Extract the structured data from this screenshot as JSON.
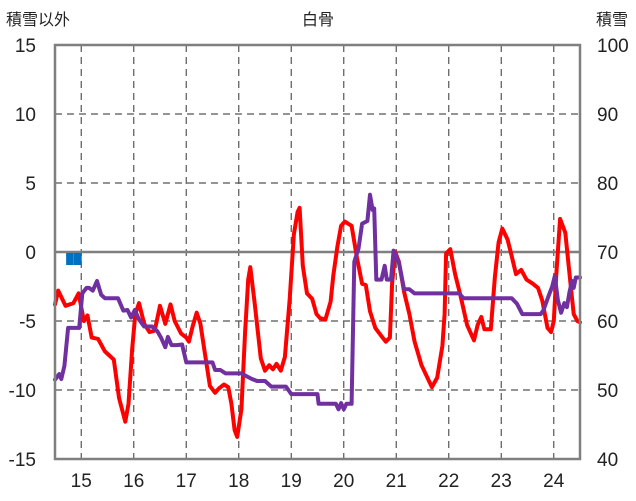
{
  "chart_data": {
    "type": "line",
    "title": "白骨",
    "left_axis_label": "積雪以外",
    "right_axis_label": "積雪",
    "x_ticks": [
      "15",
      "16",
      "17",
      "18",
      "19",
      "20",
      "21",
      "22",
      "23",
      "24"
    ],
    "left_ticks": [
      "15",
      "10",
      "5",
      "0",
      "-5",
      "-10",
      "-15"
    ],
    "right_ticks": [
      "100",
      "90",
      "80",
      "70",
      "60",
      "50",
      "40"
    ],
    "xlim": [
      14.5,
      24.5
    ],
    "ylim_left": [
      -15,
      15
    ],
    "ylim_right": [
      40,
      100
    ],
    "grid": true,
    "colors": {
      "red_series": "#ff0000",
      "purple_series": "#7030a0",
      "marker_series": "#0070c0",
      "zero_line": "#7f7f7f",
      "grid": "#555555",
      "frame": "#7f7f7f"
    },
    "series": [
      {
        "axis": "left",
        "color": "#ff0000",
        "points": [
          [
            14.5,
            -3.8
          ],
          [
            14.56,
            -2.8
          ],
          [
            14.7,
            -3.9
          ],
          [
            14.85,
            -3.7
          ],
          [
            14.95,
            -3.0
          ],
          [
            15.05,
            -5.0
          ],
          [
            15.12,
            -4.6
          ],
          [
            15.2,
            -6.2
          ],
          [
            15.32,
            -6.3
          ],
          [
            15.45,
            -7.2
          ],
          [
            15.62,
            -7.8
          ],
          [
            15.72,
            -10.6
          ],
          [
            15.84,
            -12.3
          ],
          [
            15.9,
            -11.0
          ],
          [
            15.97,
            -7.0
          ],
          [
            16.03,
            -4.5
          ],
          [
            16.1,
            -3.7
          ],
          [
            16.2,
            -5.2
          ],
          [
            16.3,
            -5.8
          ],
          [
            16.4,
            -5.7
          ],
          [
            16.5,
            -3.9
          ],
          [
            16.6,
            -5.2
          ],
          [
            16.7,
            -3.8
          ],
          [
            16.78,
            -5.0
          ],
          [
            16.9,
            -5.9
          ],
          [
            17.0,
            -6.2
          ],
          [
            17.05,
            -6.5
          ],
          [
            17.12,
            -5.4
          ],
          [
            17.2,
            -4.4
          ],
          [
            17.27,
            -5.2
          ],
          [
            17.35,
            -7.2
          ],
          [
            17.45,
            -9.7
          ],
          [
            17.55,
            -10.2
          ],
          [
            17.62,
            -9.9
          ],
          [
            17.72,
            -9.6
          ],
          [
            17.8,
            -9.8
          ],
          [
            17.86,
            -11.0
          ],
          [
            17.92,
            -12.9
          ],
          [
            17.97,
            -13.4
          ],
          [
            18.05,
            -11.4
          ],
          [
            18.12,
            -5.8
          ],
          [
            18.18,
            -2.0
          ],
          [
            18.22,
            -1.1
          ],
          [
            18.3,
            -3.6
          ],
          [
            18.42,
            -7.7
          ],
          [
            18.5,
            -8.6
          ],
          [
            18.58,
            -8.2
          ],
          [
            18.65,
            -8.5
          ],
          [
            18.72,
            -8.1
          ],
          [
            18.8,
            -8.6
          ],
          [
            18.88,
            -7.6
          ],
          [
            18.97,
            -3.4
          ],
          [
            19.05,
            1.3
          ],
          [
            19.12,
            2.9
          ],
          [
            19.16,
            3.2
          ],
          [
            19.22,
            -1.0
          ],
          [
            19.3,
            -3.0
          ],
          [
            19.4,
            -3.4
          ],
          [
            19.48,
            -4.5
          ],
          [
            19.55,
            -4.8
          ],
          [
            19.65,
            -4.9
          ],
          [
            19.75,
            -3.6
          ],
          [
            19.8,
            -1.7
          ],
          [
            19.88,
            0.4
          ],
          [
            19.95,
            1.9
          ],
          [
            20.02,
            2.2
          ],
          [
            20.15,
            1.9
          ],
          [
            20.25,
            -0.4
          ],
          [
            20.35,
            -2.3
          ],
          [
            20.42,
            -2.4
          ],
          [
            20.5,
            -4.3
          ],
          [
            20.6,
            -5.5
          ],
          [
            20.72,
            -6.1
          ],
          [
            20.8,
            -6.5
          ],
          [
            20.88,
            -6.2
          ],
          [
            20.92,
            -2.3
          ],
          [
            20.98,
            0.0
          ],
          [
            21.05,
            -0.7
          ],
          [
            21.15,
            -2.9
          ],
          [
            21.25,
            -4.5
          ],
          [
            21.35,
            -6.5
          ],
          [
            21.48,
            -8.2
          ],
          [
            21.58,
            -9.0
          ],
          [
            21.68,
            -9.8
          ],
          [
            21.78,
            -9.1
          ],
          [
            21.88,
            -6.8
          ],
          [
            21.92,
            -4.5
          ],
          [
            21.95,
            -0.1
          ],
          [
            22.03,
            0.2
          ],
          [
            22.12,
            -1.6
          ],
          [
            22.22,
            -3.1
          ],
          [
            22.35,
            -5.3
          ],
          [
            22.48,
            -6.4
          ],
          [
            22.55,
            -5.3
          ],
          [
            22.62,
            -4.7
          ],
          [
            22.68,
            -5.6
          ],
          [
            22.8,
            -5.6
          ],
          [
            22.88,
            -1.8
          ],
          [
            22.95,
            0.7
          ],
          [
            23.02,
            1.7
          ],
          [
            23.12,
            0.9
          ],
          [
            23.2,
            -0.3
          ],
          [
            23.28,
            -1.6
          ],
          [
            23.38,
            -1.3
          ],
          [
            23.48,
            -2.0
          ],
          [
            23.6,
            -2.3
          ],
          [
            23.7,
            -2.6
          ],
          [
            23.78,
            -3.5
          ],
          [
            23.88,
            -5.5
          ],
          [
            23.95,
            -5.8
          ],
          [
            24.0,
            -5.0
          ],
          [
            24.05,
            -1.5
          ],
          [
            24.12,
            2.4
          ],
          [
            24.22,
            1.4
          ],
          [
            24.32,
            -2.3
          ],
          [
            24.38,
            -4.5
          ],
          [
            24.45,
            -5.0
          ],
          [
            24.5,
            -5.1
          ]
        ]
      },
      {
        "axis": "right",
        "color": "#7030a0",
        "points": [
          [
            14.5,
            51.5
          ],
          [
            14.58,
            52.3
          ],
          [
            14.62,
            51.6
          ],
          [
            14.68,
            53.5
          ],
          [
            14.75,
            59.0
          ],
          [
            14.82,
            59.0
          ],
          [
            14.9,
            59.0
          ],
          [
            14.96,
            59.0
          ],
          [
            15.02,
            64.0
          ],
          [
            15.1,
            64.8
          ],
          [
            15.15,
            64.8
          ],
          [
            15.22,
            64.4
          ],
          [
            15.3,
            65.8
          ],
          [
            15.38,
            63.8
          ],
          [
            15.45,
            63.3
          ],
          [
            15.55,
            63.3
          ],
          [
            15.7,
            63.3
          ],
          [
            15.8,
            61.5
          ],
          [
            15.88,
            61.6
          ],
          [
            15.95,
            60.5
          ],
          [
            16.02,
            61.6
          ],
          [
            16.1,
            60.2
          ],
          [
            16.2,
            59.2
          ],
          [
            16.35,
            59.2
          ],
          [
            16.45,
            58.5
          ],
          [
            16.52,
            57.6
          ],
          [
            16.6,
            56.2
          ],
          [
            16.65,
            57.7
          ],
          [
            16.72,
            56.5
          ],
          [
            16.82,
            56.5
          ],
          [
            16.92,
            56.6
          ],
          [
            17.0,
            54.0
          ],
          [
            17.1,
            54.0
          ],
          [
            17.2,
            54.0
          ],
          [
            17.35,
            54.0
          ],
          [
            17.5,
            54.0
          ],
          [
            17.55,
            52.9
          ],
          [
            17.65,
            52.9
          ],
          [
            17.75,
            52.4
          ],
          [
            17.9,
            52.4
          ],
          [
            18.05,
            52.4
          ],
          [
            18.15,
            52.0
          ],
          [
            18.25,
            51.6
          ],
          [
            18.35,
            51.3
          ],
          [
            18.5,
            51.3
          ],
          [
            18.62,
            50.5
          ],
          [
            18.75,
            50.5
          ],
          [
            18.9,
            50.5
          ],
          [
            19.0,
            49.4
          ],
          [
            19.25,
            49.4
          ],
          [
            19.5,
            49.4
          ],
          [
            19.52,
            48.0
          ],
          [
            19.7,
            48.0
          ],
          [
            19.85,
            48.0
          ],
          [
            19.9,
            47.2
          ],
          [
            19.95,
            48.1
          ],
          [
            20.0,
            47.2
          ],
          [
            20.05,
            48.0
          ],
          [
            20.15,
            48.0
          ],
          [
            20.2,
            68.6
          ],
          [
            20.28,
            70.5
          ],
          [
            20.35,
            74.1
          ],
          [
            20.45,
            74.5
          ],
          [
            20.5,
            78.3
          ],
          [
            20.55,
            76.1
          ],
          [
            20.58,
            76.3
          ],
          [
            20.62,
            66.0
          ],
          [
            20.72,
            66.0
          ],
          [
            20.78,
            68.0
          ],
          [
            20.82,
            66.0
          ],
          [
            20.9,
            66.0
          ],
          [
            20.95,
            70.2
          ],
          [
            21.05,
            68.5
          ],
          [
            21.15,
            64.6
          ],
          [
            21.25,
            64.6
          ],
          [
            21.35,
            64.0
          ],
          [
            21.6,
            64.0
          ],
          [
            21.9,
            64.0
          ],
          [
            22.2,
            64.0
          ],
          [
            22.28,
            63.3
          ],
          [
            22.6,
            63.3
          ],
          [
            22.9,
            63.3
          ],
          [
            23.05,
            63.3
          ],
          [
            23.2,
            63.3
          ],
          [
            23.3,
            62.5
          ],
          [
            23.4,
            61.0
          ],
          [
            23.6,
            61.0
          ],
          [
            23.75,
            61.0
          ],
          [
            23.8,
            61.5
          ],
          [
            23.9,
            63.6
          ],
          [
            23.97,
            65.0
          ],
          [
            24.02,
            66.5
          ],
          [
            24.08,
            63.0
          ],
          [
            24.14,
            61.2
          ],
          [
            24.2,
            62.6
          ],
          [
            24.25,
            62.0
          ],
          [
            24.3,
            64.2
          ],
          [
            24.35,
            65.8
          ],
          [
            24.38,
            64.8
          ],
          [
            24.42,
            66.3
          ],
          [
            24.5,
            66.3
          ]
        ]
      },
      {
        "axis": "left",
        "color": "#0070c0",
        "style": "bars",
        "points": [
          [
            14.75,
            -0.5
          ],
          [
            14.82,
            -0.5
          ],
          [
            14.9,
            -0.5
          ],
          [
            14.97,
            -0.5
          ]
        ]
      }
    ]
  }
}
